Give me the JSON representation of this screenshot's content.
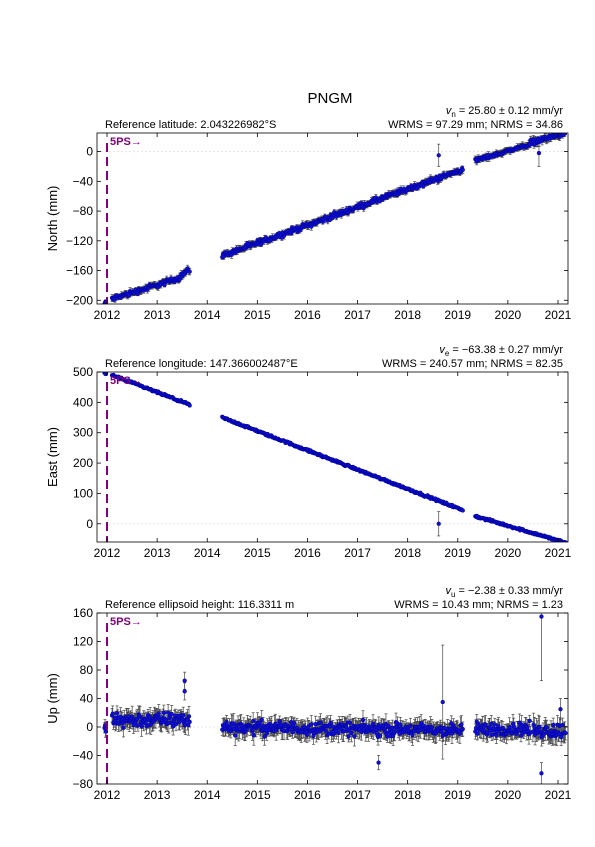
{
  "station": "PNGM",
  "event_label": "5PS",
  "event_arrow": "→",
  "event_color": "#800080",
  "point_color": "#1010d0",
  "error_color": "#444444",
  "chart_data": [
    {
      "type": "scatter",
      "component": "north",
      "ylabel": "North (mm)",
      "reference_text": "Reference latitude: 2.043226982°S",
      "velocity_symbol": "v",
      "velocity_subscript": "n",
      "velocity_text": " = 25.80 ± 0.12 mm/yr",
      "stats_text": "WRMS = 97.29 mm; NRMS = 34.86",
      "xlim": [
        2011.8,
        2021.2
      ],
      "ylim": [
        -205,
        25
      ],
      "yticks": [
        0,
        -40,
        -80,
        -120,
        -160,
        -200
      ],
      "ytick_labels": [
        "0",
        "−40",
        "−80",
        "−120",
        "−160",
        "−200"
      ],
      "xticks": [
        2012,
        2013,
        2014,
        2015,
        2016,
        2017,
        2018,
        2019,
        2020,
        2021
      ],
      "xtick_labels": [
        "2012",
        "2013",
        "2014",
        "2015",
        "2016",
        "2017",
        "2018",
        "2019",
        "2020",
        "2021"
      ],
      "event_x": 2012.0,
      "segments": [
        {
          "x": [
            2011.95,
            2011.98
          ],
          "y": [
            -205,
            -203
          ],
          "noise": 2,
          "err": 3
        },
        {
          "x": [
            2012.1,
            2013.45
          ],
          "y": [
            -198,
            -170
          ],
          "noise": 3,
          "err": 4
        },
        {
          "x": [
            2013.45,
            2013.65
          ],
          "y": [
            -168,
            -158
          ],
          "noise": 3,
          "err": 4
        },
        {
          "x": [
            2014.3,
            2019.1
          ],
          "y": [
            -140,
            -24
          ],
          "noise": 3,
          "err": 4
        },
        {
          "x": [
            2019.35,
            2020.45
          ],
          "y": [
            -12,
            10
          ],
          "noise": 2,
          "err": 4
        },
        {
          "x": [
            2020.45,
            2021.15
          ],
          "y": [
            12,
            25
          ],
          "noise": 3,
          "err": 5
        }
      ],
      "outliers": [
        {
          "x": 2018.62,
          "y": -5,
          "err": 15
        },
        {
          "x": 2020.62,
          "y": -2,
          "err": 18
        }
      ]
    },
    {
      "type": "scatter",
      "component": "east",
      "ylabel": "East (mm)",
      "reference_text": "Reference longitude: 147.366002487°E",
      "velocity_symbol": "v",
      "velocity_subscript": "e",
      "velocity_text": " = −63.38 ± 0.27 mm/yr",
      "stats_text": "WRMS = 240.57 mm; NRMS = 82.35",
      "xlim": [
        2011.8,
        2021.2
      ],
      "ylim": [
        -60,
        500
      ],
      "yticks": [
        500,
        400,
        300,
        200,
        100,
        0
      ],
      "ytick_labels": [
        "500",
        "400",
        "300",
        "200",
        "100",
        "0"
      ],
      "xticks": [
        2012,
        2013,
        2014,
        2015,
        2016,
        2017,
        2018,
        2019,
        2020,
        2021
      ],
      "xtick_labels": [
        "2012",
        "2013",
        "2014",
        "2015",
        "2016",
        "2017",
        "2018",
        "2019",
        "2020",
        "2021"
      ],
      "event_x": 2012.0,
      "segments": [
        {
          "x": [
            2011.95,
            2011.98
          ],
          "y": [
            496,
            493
          ],
          "noise": 2,
          "err": 3
        },
        {
          "x": [
            2012.1,
            2013.65
          ],
          "y": [
            490,
            392
          ],
          "noise": 3,
          "err": 4
        },
        {
          "x": [
            2014.3,
            2019.1
          ],
          "y": [
            350,
            45
          ],
          "noise": 3,
          "err": 4
        },
        {
          "x": [
            2019.35,
            2021.15
          ],
          "y": [
            25,
            -62
          ],
          "noise": 3,
          "err": 4
        }
      ],
      "outliers": [
        {
          "x": 2018.62,
          "y": 0,
          "err": 40
        }
      ]
    },
    {
      "type": "scatter",
      "component": "up",
      "ylabel": "Up (mm)",
      "reference_text": "Reference ellipsoid height: 116.3311 m",
      "velocity_symbol": "v",
      "velocity_subscript": "u",
      "velocity_text": " = −2.38 ± 0.33 mm/yr",
      "stats_text": "WRMS = 10.43 mm; NRMS = 1.23",
      "xlim": [
        2011.8,
        2021.2
      ],
      "ylim": [
        -80,
        160
      ],
      "yticks": [
        160,
        120,
        80,
        40,
        0,
        -40,
        -80
      ],
      "ytick_labels": [
        "160",
        "120",
        "80",
        "40",
        "0",
        "−40",
        "−80"
      ],
      "xticks": [
        2012,
        2013,
        2014,
        2015,
        2016,
        2017,
        2018,
        2019,
        2020,
        2021
      ],
      "xtick_labels": [
        "2012",
        "2013",
        "2014",
        "2015",
        "2016",
        "2017",
        "2018",
        "2019",
        "2020",
        "2021"
      ],
      "event_x": 2012.0,
      "segments": [
        {
          "x": [
            2011.95,
            2011.98
          ],
          "y": [
            -2,
            -5
          ],
          "noise": 6,
          "err": 10
        },
        {
          "x": [
            2012.1,
            2013.65
          ],
          "y": [
            10,
            10
          ],
          "noise": 9,
          "err": 12
        },
        {
          "x": [
            2014.3,
            2019.1
          ],
          "y": [
            0,
            -5
          ],
          "noise": 8,
          "err": 12
        },
        {
          "x": [
            2019.35,
            2020.45
          ],
          "y": [
            -3,
            -3
          ],
          "noise": 8,
          "err": 12
        },
        {
          "x": [
            2020.5,
            2021.15
          ],
          "y": [
            -5,
            -5
          ],
          "noise": 9,
          "err": 14
        }
      ],
      "outliers": [
        {
          "x": 2013.55,
          "y": 65,
          "err": 12
        },
        {
          "x": 2013.55,
          "y": 50,
          "err": 12
        },
        {
          "x": 2017.42,
          "y": -50,
          "err": 10
        },
        {
          "x": 2018.7,
          "y": 35,
          "err": 80
        },
        {
          "x": 2020.67,
          "y": 155,
          "err": 90
        },
        {
          "x": 2020.67,
          "y": -65,
          "err": 15
        },
        {
          "x": 2021.05,
          "y": 25,
          "err": 15
        }
      ]
    }
  ]
}
